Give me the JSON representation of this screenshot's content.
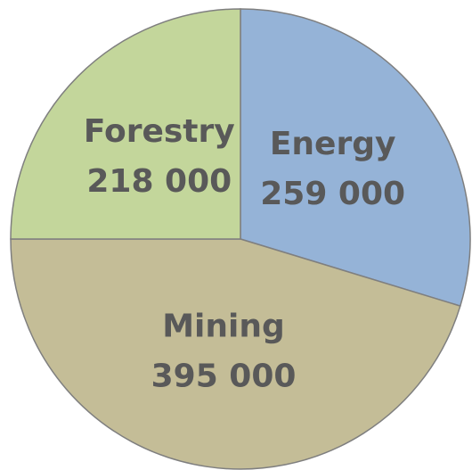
{
  "chart_data": {
    "type": "pie",
    "categories": [
      "Energy",
      "Mining",
      "Forestry"
    ],
    "values": [
      259000,
      395000,
      218000
    ],
    "value_labels": [
      "259 000",
      "395 000",
      "218 000"
    ],
    "colors": [
      "#95b3d7",
      "#c4bd97",
      "#c3d69b"
    ]
  }
}
